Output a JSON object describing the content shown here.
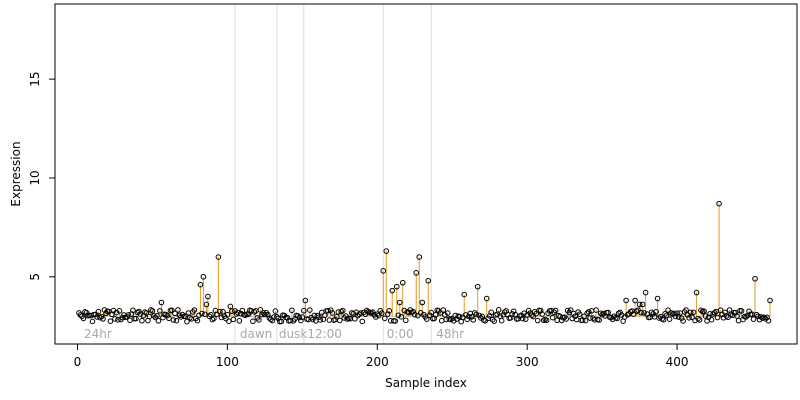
{
  "chart_data": {
    "type": "scatter",
    "xlabel": "Sample index",
    "ylabel": "Expression",
    "xlim": [
      -15,
      480
    ],
    "ylim": [
      1.6,
      18.8
    ],
    "x_ticks": [
      0,
      100,
      200,
      300,
      400
    ],
    "y_ticks": [
      5,
      10,
      15
    ],
    "baseline": 3.0,
    "colors": {
      "segment": "#e69b1e",
      "point_stroke": "#000000",
      "baseline": "#c8c8c8",
      "region_line": "#dedede",
      "region_text": "#a8a8a8"
    },
    "region_boundaries": [
      105,
      133,
      151,
      204,
      236
    ],
    "region_labels": [
      {
        "x": 3,
        "label": "24hr"
      },
      {
        "x": 107,
        "label": "dawn"
      },
      {
        "x": 133,
        "label": "dusk"
      },
      {
        "x": 152,
        "label": "12:00"
      },
      {
        "x": 205,
        "label": "0:00"
      },
      {
        "x": 238,
        "label": "48hr"
      }
    ],
    "n_points": 462,
    "peaks": [
      [
        56,
        3.7
      ],
      [
        82,
        4.6
      ],
      [
        84,
        5.0
      ],
      [
        86,
        3.6
      ],
      [
        87,
        4.0
      ],
      [
        94,
        6.0
      ],
      [
        102,
        3.5
      ],
      [
        152,
        3.8
      ],
      [
        204,
        5.3
      ],
      [
        206,
        6.3
      ],
      [
        210,
        4.3
      ],
      [
        213,
        4.5
      ],
      [
        215,
        3.7
      ],
      [
        217,
        4.7
      ],
      [
        226,
        5.2
      ],
      [
        228,
        6.0
      ],
      [
        230,
        3.7
      ],
      [
        234,
        4.8
      ],
      [
        258,
        4.1
      ],
      [
        267,
        4.5
      ],
      [
        273,
        3.9
      ],
      [
        366,
        3.8
      ],
      [
        372,
        3.8
      ],
      [
        375,
        3.6
      ],
      [
        377,
        3.6
      ],
      [
        379,
        4.2
      ],
      [
        387,
        3.9
      ],
      [
        413,
        4.2
      ],
      [
        428,
        8.7
      ],
      [
        452,
        4.9
      ],
      [
        462,
        3.8
      ]
    ]
  }
}
